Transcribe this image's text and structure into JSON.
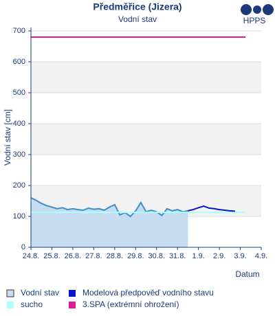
{
  "chart_data": {
    "type": "line",
    "title": "Předměřice (Jizera)",
    "subtitle": "Vodní stav",
    "logo": "HPPS",
    "y_label": "Vodní stav [cm]",
    "x_label": "Datum",
    "ylim": [
      0,
      700
    ],
    "yticks": [
      0,
      100,
      200,
      300,
      400,
      500,
      600,
      700
    ],
    "xlim": [
      0,
      11
    ],
    "xticks": [
      {
        "value": 0,
        "label": "24.8."
      },
      {
        "value": 1,
        "label": "25.8."
      },
      {
        "value": 2,
        "label": "26.8."
      },
      {
        "value": 3,
        "label": "27.8."
      },
      {
        "value": 4,
        "label": "28.8."
      },
      {
        "value": 5,
        "label": "29.8."
      },
      {
        "value": 6,
        "label": "30.8."
      },
      {
        "value": 7,
        "label": "31.8."
      },
      {
        "value": 8,
        "label": "1.9."
      },
      {
        "value": 9,
        "label": "2.9."
      },
      {
        "value": 10,
        "label": "3.9."
      },
      {
        "value": 11,
        "label": "4.9."
      }
    ],
    "series": [
      {
        "name": "Vodní stav",
        "color": "#3d8ec9",
        "fill": "#c6dcf0",
        "area": true,
        "x": [
          0,
          0.25,
          0.5,
          0.75,
          1,
          1.25,
          1.5,
          1.75,
          2,
          2.25,
          2.5,
          2.75,
          3,
          3.25,
          3.5,
          3.75,
          4,
          4.25,
          4.5,
          4.75,
          5,
          5.25,
          5.5,
          5.75,
          6,
          6.25,
          6.5,
          6.75,
          7,
          7.25,
          7.5
        ],
        "values": [
          160,
          152,
          142,
          135,
          130,
          125,
          128,
          122,
          125,
          122,
          120,
          127,
          123,
          125,
          120,
          130,
          138,
          105,
          112,
          100,
          118,
          145,
          115,
          120,
          115,
          103,
          125,
          118,
          122,
          115,
          118
        ]
      },
      {
        "name": "sucho",
        "color": "#aaffff",
        "x": [
          0,
          10.25
        ],
        "values": [
          113,
          113
        ]
      },
      {
        "name": "Modelová předpověď vodního stavu",
        "color": "#0a14c8",
        "x": [
          7.5,
          7.75,
          8,
          8.25,
          8.5,
          8.75,
          9,
          9.25,
          9.5,
          9.75
        ],
        "values": [
          118,
          122,
          128,
          133,
          127,
          125,
          122,
          120,
          118,
          117
        ]
      },
      {
        "name": "3.SPA (extrémní ohrožení)",
        "color": "#e0189a",
        "x": [
          0,
          10.25
        ],
        "values": [
          680,
          680
        ]
      }
    ]
  }
}
